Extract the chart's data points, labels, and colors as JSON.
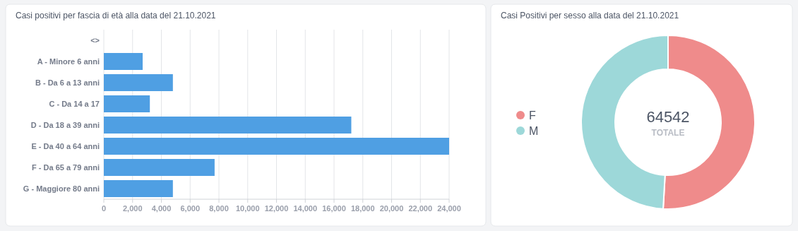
{
  "chart_data": [
    {
      "type": "bar",
      "orientation": "horizontal",
      "title": "Casi positivi per fascia di età alla data del 21.10.2021",
      "categories": [
        "<>",
        "A - Minore 6 anni",
        "B - Da 6 a 13 anni",
        "C - Da 14 a 17",
        "D - Da 18 a 39 anni",
        "E - Da 40 a 64 anni",
        "F - Da 65 a 79 anni",
        "G - Maggiore 80 anni"
      ],
      "values": [
        null,
        2700,
        4800,
        3200,
        17200,
        24000,
        7700,
        4800
      ],
      "color": "#4f9fe3",
      "xlim": [
        0,
        24000
      ],
      "xticks": [
        0,
        {
          "value": 2000,
          "label": "2,000"
        },
        {
          "value": 4000,
          "label": "4,000"
        },
        {
          "value": 6000,
          "label": "6,000"
        },
        {
          "value": 8000,
          "label": "8,000"
        },
        {
          "value": 10000,
          "label": "10,000"
        },
        {
          "value": 12000,
          "label": "12,000"
        },
        {
          "value": 14000,
          "label": "14,000"
        },
        {
          "value": 16000,
          "label": "16,000"
        },
        {
          "value": 18000,
          "label": "18,000"
        },
        {
          "value": 20000,
          "label": "20,000"
        },
        {
          "value": 22000,
          "label": "22,000"
        },
        {
          "value": 24000,
          "label": "24,000"
        }
      ],
      "grid": "x"
    },
    {
      "type": "donut",
      "title": "Casi Positivi per sesso alla data del 21.10.2021",
      "categories": [
        "F",
        "M"
      ],
      "values": [
        50.9,
        49.1
      ],
      "colors": [
        "#ef8b8b",
        "#9dd8d9"
      ],
      "legend": "left",
      "annotations": [
        "64542",
        "TOTALE"
      ]
    }
  ]
}
